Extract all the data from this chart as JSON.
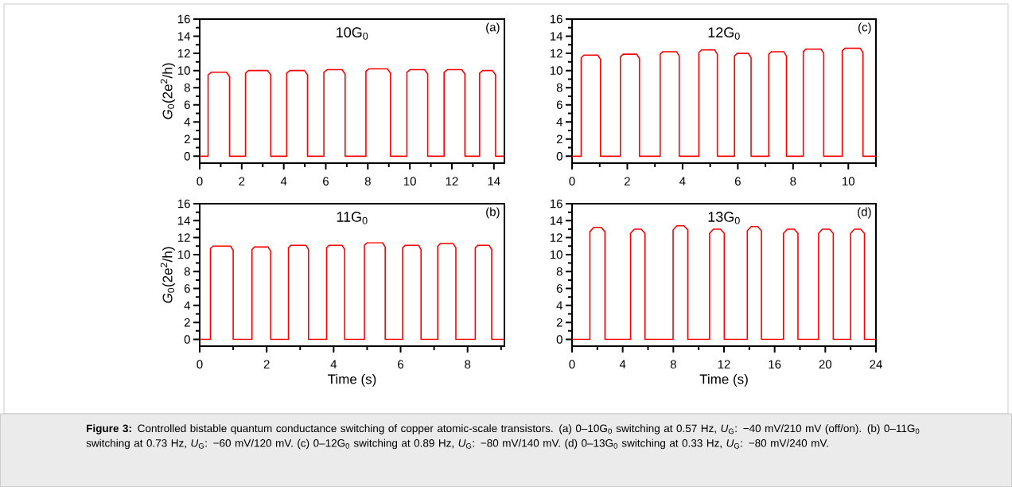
{
  "chart_data": [
    {
      "type": "line",
      "color": "#ff0000",
      "ylabel": "*G*$_{0}$(2e$^{2}$/h)",
      "annotations": [
        "10G$_{0}$",
        "(a)"
      ],
      "xlim": [
        0,
        14.5
      ],
      "ylim": [
        -0.8,
        16
      ],
      "xticks": [
        0,
        {
          "value": 1,
          "label": null
        },
        2,
        {
          "value": 3,
          "label": null
        },
        4,
        {
          "value": 5,
          "label": null
        },
        6,
        {
          "value": 7,
          "label": null
        },
        8,
        {
          "value": 9,
          "label": null
        },
        10,
        {
          "value": 11,
          "label": null
        },
        12,
        {
          "value": 13,
          "label": null
        },
        14
      ],
      "yticks": [
        0,
        {
          "value": 1,
          "label": null
        },
        2,
        {
          "value": 3,
          "label": null
        },
        4,
        {
          "value": 5,
          "label": null
        },
        6,
        {
          "value": 7,
          "label": null
        },
        8,
        {
          "value": 9,
          "label": null
        },
        10,
        {
          "value": 11,
          "label": null
        },
        12,
        {
          "value": 13,
          "label": null
        },
        14,
        {
          "value": 15,
          "label": null
        },
        16
      ],
      "x": [
        0,
        0.4,
        0.4,
        0.55,
        1.27,
        1.42,
        1.42,
        2.18,
        2.18,
        2.33,
        3.23,
        3.38,
        3.38,
        4.14,
        4.14,
        4.29,
        4.98,
        5.13,
        5.13,
        5.91,
        5.91,
        6.06,
        6.77,
        6.92,
        6.92,
        7.91,
        7.91,
        8.06,
        8.93,
        9.08,
        9.08,
        9.86,
        9.86,
        10.01,
        10.7,
        10.85,
        10.85,
        11.63,
        11.63,
        11.78,
        12.47,
        12.62,
        12.62,
        13.32,
        13.32,
        13.47,
        13.93,
        14.08,
        14.08,
        14.5
      ],
      "values": [
        0,
        0,
        9.5,
        9.8,
        9.8,
        9.3,
        0,
        0,
        9.7,
        10.0,
        10.0,
        9.5,
        0,
        0,
        9.7,
        10.0,
        10.0,
        9.5,
        0,
        0,
        9.8,
        10.1,
        10.1,
        9.6,
        0,
        0,
        9.9,
        10.2,
        10.2,
        9.7,
        0,
        0,
        9.8,
        10.1,
        10.1,
        9.6,
        0,
        0,
        9.8,
        10.1,
        10.1,
        9.6,
        0,
        0,
        9.7,
        10.0,
        10.0,
        9.5,
        0,
        0
      ]
    },
    {
      "type": "line",
      "color": "#ff0000",
      "annotations": [
        "12G$_{0}$",
        "(c)"
      ],
      "xlim": [
        0,
        11
      ],
      "ylim": [
        -0.8,
        16
      ],
      "xticks": [
        0,
        {
          "value": 1,
          "label": null
        },
        2,
        {
          "value": 3,
          "label": null
        },
        4,
        {
          "value": 5,
          "label": null
        },
        6,
        {
          "value": 7,
          "label": null
        },
        8,
        {
          "value": 9,
          "label": null
        },
        10,
        {
          "value": 11,
          "label": null
        }
      ],
      "yticks": [
        0,
        {
          "value": 1,
          "label": null
        },
        2,
        {
          "value": 3,
          "label": null
        },
        4,
        {
          "value": 5,
          "label": null
        },
        6,
        {
          "value": 7,
          "label": null
        },
        8,
        {
          "value": 9,
          "label": null
        },
        10,
        {
          "value": 11,
          "label": null
        },
        12,
        {
          "value": 13,
          "label": null
        },
        14,
        {
          "value": 15,
          "label": null
        },
        16
      ],
      "x": [
        0,
        0.33,
        0.33,
        0.43,
        0.93,
        1.03,
        1.03,
        1.75,
        1.75,
        1.85,
        2.34,
        2.44,
        2.44,
        3.19,
        3.19,
        3.29,
        3.78,
        3.88,
        3.88,
        4.59,
        4.59,
        4.69,
        5.16,
        5.26,
        5.26,
        5.88,
        5.88,
        5.98,
        6.38,
        6.48,
        6.48,
        7.12,
        7.12,
        7.22,
        7.66,
        7.76,
        7.76,
        8.37,
        8.37,
        8.47,
        9.01,
        9.11,
        9.11,
        9.78,
        9.78,
        9.88,
        10.43,
        10.53,
        10.53,
        11
      ],
      "values": [
        0,
        0,
        11.5,
        11.8,
        11.8,
        11.3,
        0,
        0,
        11.6,
        11.9,
        11.9,
        11.4,
        0,
        0,
        11.9,
        12.2,
        12.2,
        11.7,
        0,
        0,
        12.1,
        12.4,
        12.4,
        11.9,
        0,
        0,
        11.7,
        12.0,
        12.0,
        11.5,
        0,
        0,
        11.9,
        12.2,
        12.2,
        11.7,
        0,
        0,
        12.2,
        12.5,
        12.5,
        12.0,
        0,
        0,
        12.3,
        12.6,
        12.6,
        12.1,
        0,
        0
      ]
    },
    {
      "type": "line",
      "color": "#ff0000",
      "ylabel": "*G*$_{0}$(2e$^{2}$/h)",
      "xlabel": "Time (s)",
      "annotations": [
        "11G$_{0}$",
        "(b)"
      ],
      "xlim": [
        0,
        9.1
      ],
      "ylim": [
        -0.8,
        16
      ],
      "xticks": [
        0,
        {
          "value": 1,
          "label": null
        },
        2,
        {
          "value": 3,
          "label": null
        },
        4,
        {
          "value": 5,
          "label": null
        },
        6,
        {
          "value": 7,
          "label": null
        },
        8,
        {
          "value": 9,
          "label": null
        }
      ],
      "yticks": [
        0,
        {
          "value": 1,
          "label": null
        },
        2,
        {
          "value": 3,
          "label": null
        },
        4,
        {
          "value": 5,
          "label": null
        },
        6,
        {
          "value": 7,
          "label": null
        },
        8,
        {
          "value": 9,
          "label": null
        },
        10,
        {
          "value": 11,
          "label": null
        },
        12,
        {
          "value": 13,
          "label": null
        },
        14,
        {
          "value": 15,
          "label": null
        },
        16
      ],
      "x": [
        0,
        0.32,
        0.32,
        0.4,
        0.92,
        1.0,
        1.0,
        1.56,
        1.56,
        1.64,
        2.04,
        2.12,
        2.12,
        2.65,
        2.65,
        2.73,
        3.17,
        3.25,
        3.25,
        3.79,
        3.79,
        3.87,
        4.25,
        4.33,
        4.33,
        4.92,
        4.92,
        5.0,
        5.46,
        5.54,
        5.54,
        6.06,
        6.06,
        6.14,
        6.53,
        6.61,
        6.61,
        7.11,
        7.11,
        7.19,
        7.57,
        7.65,
        7.65,
        8.23,
        8.23,
        8.31,
        8.64,
        8.72,
        8.72,
        9.1
      ],
      "values": [
        0,
        0,
        10.7,
        11.0,
        11.0,
        10.5,
        0,
        0,
        10.6,
        10.9,
        10.9,
        10.4,
        0,
        0,
        10.8,
        11.1,
        11.1,
        10.6,
        0,
        0,
        10.8,
        11.1,
        11.1,
        10.6,
        0,
        0,
        11.1,
        11.4,
        11.4,
        10.9,
        0,
        0,
        10.8,
        11.1,
        11.1,
        10.6,
        0,
        0,
        11.0,
        11.3,
        11.3,
        10.8,
        0,
        0,
        10.8,
        11.1,
        11.1,
        10.6,
        0,
        0
      ]
    },
    {
      "type": "line",
      "color": "#ff0000",
      "xlabel": "Time (s)",
      "annotations": [
        "13G$_{0}$",
        "(d)",
        "**Figure 3:** Controlled bistable quantum conductance switching of copper atomic-scale transistors. (a) 0–10G$_{0}$ switching at 0.57 Hz, *U*$_{G}$: −40 mV/210 mV (off/on). (b) 0–11G$_{0}$ switching at 0.73 Hz, *U*$_{G}$: −60 mV/120 mV. (c) 0–12G$_{0}$ switching at 0.89 Hz, *U*$_{G}$: −80 mV/140 mV. (d) 0–13G$_{0}$ switching at 0.33 Hz, *U*$_{G}$: −80 mV/240 mV."
      ],
      "xlim": [
        0,
        24
      ],
      "ylim": [
        -0.8,
        16
      ],
      "xticks": [
        0,
        {
          "value": 2,
          "label": null
        },
        4,
        {
          "value": 6,
          "label": null
        },
        8,
        {
          "value": 10,
          "label": null
        },
        12,
        {
          "value": 14,
          "label": null
        },
        16,
        {
          "value": 18,
          "label": null
        },
        20,
        {
          "value": 22,
          "label": null
        },
        24
      ],
      "yticks": [
        0,
        {
          "value": 1,
          "label": null
        },
        2,
        {
          "value": 3,
          "label": null
        },
        4,
        {
          "value": 5,
          "label": null
        },
        6,
        {
          "value": 7,
          "label": null
        },
        8,
        {
          "value": 9,
          "label": null
        },
        10,
        {
          "value": 11,
          "label": null
        },
        12,
        {
          "value": 13,
          "label": null
        },
        14,
        {
          "value": 15,
          "label": null
        },
        16
      ],
      "x": [
        0,
        1.41,
        1.41,
        1.71,
        2.3,
        2.6,
        2.6,
        4.62,
        4.62,
        4.92,
        5.46,
        5.76,
        5.76,
        7.98,
        7.98,
        8.28,
        8.84,
        9.14,
        9.14,
        10.86,
        10.86,
        11.16,
        11.72,
        12.02,
        12.02,
        13.84,
        13.84,
        14.14,
        14.66,
        14.96,
        14.96,
        16.7,
        16.7,
        17.0,
        17.54,
        17.84,
        17.84,
        19.47,
        19.47,
        19.77,
        20.33,
        20.63,
        20.63,
        22.0,
        22.0,
        22.3,
        22.79,
        23.09,
        23.09,
        24
      ],
      "values": [
        0,
        0,
        12.7,
        13.2,
        13.2,
        12.7,
        0,
        0,
        12.5,
        13.0,
        13.0,
        12.5,
        0,
        0,
        12.9,
        13.4,
        13.4,
        12.9,
        0,
        0,
        12.5,
        13.0,
        13.0,
        12.5,
        0,
        0,
        12.8,
        13.3,
        13.3,
        12.8,
        0,
        0,
        12.5,
        13.0,
        13.0,
        12.5,
        0,
        0,
        12.5,
        13.0,
        13.0,
        12.5,
        0,
        0,
        12.5,
        13.0,
        13.0,
        12.5,
        0,
        0
      ]
    }
  ]
}
